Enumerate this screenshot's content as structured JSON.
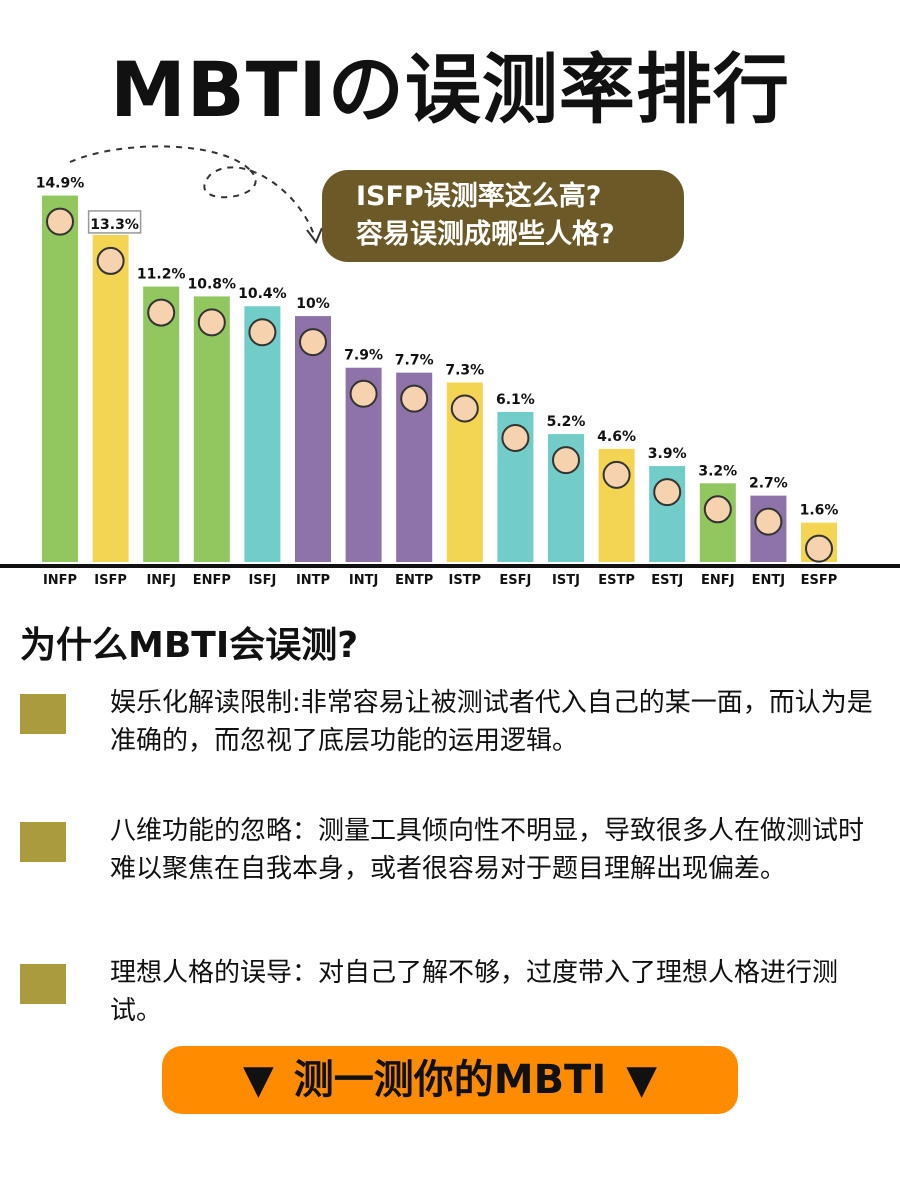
{
  "header": {
    "title": "MBTIの误测率排行"
  },
  "chart_data": {
    "type": "bar",
    "categories": [
      "INFP",
      "ISFP",
      "INFJ",
      "ENFP",
      "ISFJ",
      "INTP",
      "INTJ",
      "ENTP",
      "ISTP",
      "ESFJ",
      "ISTJ",
      "ESTP",
      "ESTJ",
      "ENFJ",
      "ENTJ",
      "ESFP"
    ],
    "values": [
      14.9,
      13.3,
      11.2,
      10.8,
      10.4,
      10,
      7.9,
      7.7,
      7.3,
      6.1,
      5.2,
      4.6,
      3.9,
      3.2,
      2.7,
      1.6
    ],
    "value_labels": [
      "14.9%",
      "13.3%",
      "11.2%",
      "10.8%",
      "10.4%",
      "10%",
      "7.9%",
      "7.7%",
      "7.3%",
      "6.1%",
      "5.2%",
      "4.6%",
      "3.9%",
      "3.2%",
      "2.7%",
      "1.6%"
    ],
    "ylim": [
      0,
      16
    ],
    "bar_colors": [
      "#92c65f",
      "#f4d453",
      "#92c65f",
      "#92c65f",
      "#72ccc8",
      "#8e73a8",
      "#8e73a8",
      "#8e73a8",
      "#f4d453",
      "#72ccc8",
      "#72ccc8",
      "#f4d453",
      "#72ccc8",
      "#92c65f",
      "#8e73a8",
      "#f4d453"
    ],
    "highlighted_category": "ISFP"
  },
  "callout": {
    "line1": "ISFP误测率这么高?",
    "line2": "容易误测成哪些人格?"
  },
  "section": {
    "title": "为什么MBTI会误测?"
  },
  "reasons": [
    {
      "text": "娱乐化解读限制:非常容易让被测试者代入自己的某一面，而认为是准确的，而忽视了底层功能的运用逻辑。"
    },
    {
      "text": "八维功能的忽略：测量工具倾向性不明显，导致很多人在做测试时难以聚焦在自我本身，或者很容易对于题目理解出现偏差。"
    },
    {
      "text": "理想人格的误导：对自己了解不够，过度带入了理想人格进行测试。"
    }
  ],
  "cta": {
    "label": "测一测你的MBTI",
    "arrow": "▼"
  },
  "colors": {
    "accent": "#ff8c00",
    "bubble": "#6b5a27",
    "square": "#aa9c3e"
  }
}
